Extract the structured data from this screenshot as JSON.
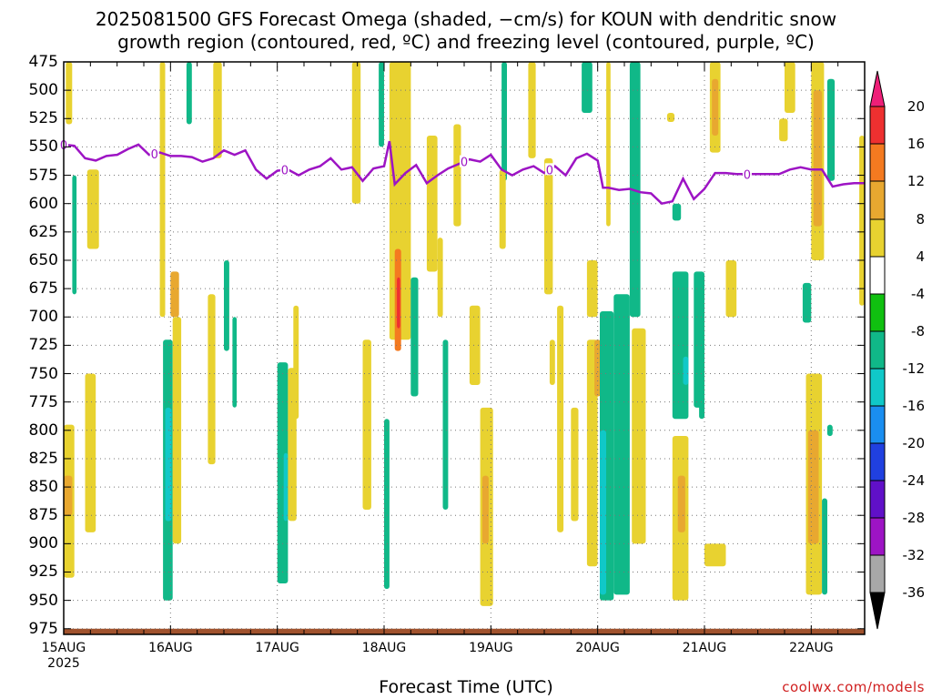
{
  "title": {
    "line1": "2025081500 GFS Forecast Omega (shaded, −cm/s) for KOUN with dendritic snow",
    "line2": "growth region (contoured, red, ºC) and freezing level (contoured, purple, ºC)"
  },
  "credit": "coolwx.com/models",
  "colors": {
    "freezing_line": "#9d14c4",
    "ground": "#a0522d",
    "grid": "#777777"
  },
  "chart_data": {
    "type": "heatmap",
    "xlabel": "Forecast Time (UTC)",
    "ylabel": "",
    "x_ticks": [
      "15AUG",
      "16AUG",
      "17AUG",
      "18AUG",
      "19AUG",
      "20AUG",
      "21AUG",
      "22AUG"
    ],
    "x_tick_year": "2025",
    "x_range_days": [
      0,
      7.5
    ],
    "y_ticks": [
      "475",
      "500",
      "525",
      "550",
      "575",
      "600",
      "625",
      "650",
      "675",
      "700",
      "725",
      "750",
      "775",
      "800",
      "825",
      "850",
      "875",
      "900",
      "925",
      "950",
      "975"
    ],
    "y_range": [
      475,
      980
    ],
    "grid": true,
    "colorbar": {
      "labels": [
        "20",
        "16",
        "12",
        "8",
        "4",
        "-4",
        "-8",
        "-12",
        "-16",
        "-20",
        "-24",
        "-28",
        "-32",
        "-36"
      ],
      "colors": [
        "#ee1f78",
        "#ee3030",
        "#f47a20",
        "#e8a830",
        "#e8d230",
        "#ffffff",
        "#10c010",
        "#10b888",
        "#10c8c8",
        "#1a8ef0",
        "#2040e0",
        "#6010c8",
        "#9d14c4",
        "#a8a8a8",
        "#000000"
      ]
    },
    "freezing_level": {
      "label": "0",
      "label_days": [
        0.0,
        0.85,
        2.07,
        3.75,
        4.55,
        6.4
      ],
      "days": [
        0,
        0.1,
        0.2,
        0.3,
        0.4,
        0.5,
        0.6,
        0.7,
        0.8,
        0.9,
        1.0,
        1.1,
        1.2,
        1.3,
        1.4,
        1.5,
        1.6,
        1.7,
        1.8,
        1.9,
        2.0,
        2.1,
        2.2,
        2.3,
        2.4,
        2.5,
        2.6,
        2.7,
        2.8,
        2.9,
        3.0,
        3.05,
        3.1,
        3.2,
        3.3,
        3.4,
        3.5,
        3.6,
        3.7,
        3.8,
        3.9,
        4.0,
        4.1,
        4.2,
        4.3,
        4.4,
        4.5,
        4.6,
        4.7,
        4.8,
        4.9,
        5.0,
        5.05,
        5.1,
        5.2,
        5.3,
        5.4,
        5.5,
        5.6,
        5.7,
        5.8,
        5.9,
        6.0,
        6.1,
        6.2,
        6.3,
        6.4,
        6.5,
        6.6,
        6.7,
        6.8,
        6.9,
        7.0,
        7.1,
        7.2,
        7.3,
        7.4,
        7.5
      ],
      "pressure": [
        548,
        549,
        560,
        562,
        558,
        557,
        552,
        548,
        557,
        555,
        558,
        558,
        559,
        563,
        560,
        553,
        557,
        553,
        570,
        578,
        571,
        570,
        575,
        570,
        567,
        560,
        570,
        568,
        580,
        569,
        567,
        545,
        583,
        573,
        566,
        582,
        575,
        569,
        565,
        561,
        563,
        557,
        570,
        575,
        570,
        567,
        573,
        567,
        575,
        560,
        556,
        562,
        586,
        586,
        588,
        587,
        590,
        591,
        600,
        598,
        578,
        596,
        587,
        573,
        573,
        574,
        574,
        574,
        574,
        574,
        570,
        568,
        570,
        570,
        585,
        583,
        582,
        582
      ]
    },
    "ground_level": 975,
    "omega_cells": [
      {
        "day0": 0.02,
        "day1": 0.08,
        "p0": 475,
        "p1": 530,
        "value": 4
      },
      {
        "day0": 0.22,
        "day1": 0.33,
        "p0": 570,
        "p1": 640,
        "value": 4
      },
      {
        "day0": 0.08,
        "day1": 0.12,
        "p0": 575,
        "p1": 680,
        "value": -8
      },
      {
        "day0": 0.0,
        "day1": 0.1,
        "p0": 795,
        "p1": 930,
        "value": 6
      },
      {
        "day0": 0.0,
        "day1": 0.08,
        "p0": 840,
        "p1": 875,
        "value": 9
      },
      {
        "day0": 0.2,
        "day1": 0.3,
        "p0": 750,
        "p1": 890,
        "value": 5
      },
      {
        "day0": 0.9,
        "day1": 0.95,
        "p0": 475,
        "p1": 700,
        "value": 4
      },
      {
        "day0": 1.0,
        "day1": 1.08,
        "p0": 660,
        "p1": 700,
        "value": 8
      },
      {
        "day0": 0.93,
        "day1": 1.02,
        "p0": 720,
        "p1": 950,
        "value": -8
      },
      {
        "day0": 0.95,
        "day1": 1.01,
        "p0": 780,
        "p1": 880,
        "value": -13
      },
      {
        "day0": 1.02,
        "day1": 1.1,
        "p0": 700,
        "p1": 900,
        "value": 5
      },
      {
        "day0": 1.15,
        "day1": 1.2,
        "p0": 475,
        "p1": 530,
        "value": -8
      },
      {
        "day0": 1.4,
        "day1": 1.48,
        "p0": 475,
        "p1": 560,
        "value": 4
      },
      {
        "day0": 1.35,
        "day1": 1.42,
        "p0": 680,
        "p1": 830,
        "value": 4
      },
      {
        "day0": 1.5,
        "day1": 1.55,
        "p0": 650,
        "p1": 730,
        "value": -8
      },
      {
        "day0": 2.0,
        "day1": 2.1,
        "p0": 740,
        "p1": 935,
        "value": -8
      },
      {
        "day0": 2.06,
        "day1": 2.1,
        "p0": 820,
        "p1": 880,
        "value": -13
      },
      {
        "day0": 2.1,
        "day1": 2.18,
        "p0": 745,
        "p1": 880,
        "value": 5
      },
      {
        "day0": 2.15,
        "day1": 2.2,
        "p0": 690,
        "p1": 790,
        "value": 4
      },
      {
        "day0": 2.7,
        "day1": 2.78,
        "p0": 475,
        "p1": 600,
        "value": 4
      },
      {
        "day0": 2.8,
        "day1": 2.88,
        "p0": 720,
        "p1": 870,
        "value": 5
      },
      {
        "day0": 3.0,
        "day1": 3.05,
        "p0": 790,
        "p1": 940,
        "value": -8
      },
      {
        "day0": 3.05,
        "day1": 3.25,
        "p0": 475,
        "p1": 720,
        "value": 5
      },
      {
        "day0": 3.1,
        "day1": 3.16,
        "p0": 640,
        "p1": 730,
        "value": 14
      },
      {
        "day0": 3.12,
        "day1": 3.15,
        "p0": 665,
        "p1": 710,
        "value": 17
      },
      {
        "day0": 2.95,
        "day1": 3.0,
        "p0": 475,
        "p1": 550,
        "value": -8
      },
      {
        "day0": 3.25,
        "day1": 3.32,
        "p0": 665,
        "p1": 770,
        "value": -8
      },
      {
        "day0": 3.4,
        "day1": 3.5,
        "p0": 540,
        "p1": 660,
        "value": 4
      },
      {
        "day0": 3.55,
        "day1": 3.6,
        "p0": 720,
        "p1": 870,
        "value": -8
      },
      {
        "day0": 3.8,
        "day1": 3.9,
        "p0": 690,
        "p1": 760,
        "value": 5
      },
      {
        "day0": 3.9,
        "day1": 4.02,
        "p0": 780,
        "p1": 955,
        "value": 6
      },
      {
        "day0": 3.92,
        "day1": 3.98,
        "p0": 840,
        "p1": 900,
        "value": 10
      },
      {
        "day0": 4.1,
        "day1": 4.15,
        "p0": 475,
        "p1": 580,
        "value": -8
      },
      {
        "day0": 4.08,
        "day1": 4.14,
        "p0": 570,
        "p1": 640,
        "value": 4
      },
      {
        "day0": 4.5,
        "day1": 4.58,
        "p0": 560,
        "p1": 680,
        "value": 4
      },
      {
        "day0": 4.55,
        "day1": 4.6,
        "p0": 720,
        "p1": 760,
        "value": 4
      },
      {
        "day0": 4.9,
        "day1": 5.0,
        "p0": 720,
        "p1": 920,
        "value": 6
      },
      {
        "day0": 4.97,
        "day1": 5.03,
        "p0": 720,
        "p1": 770,
        "value": 9
      },
      {
        "day0": 5.02,
        "day1": 5.15,
        "p0": 695,
        "p1": 950,
        "value": -8
      },
      {
        "day0": 5.02,
        "day1": 5.08,
        "p0": 800,
        "p1": 945,
        "value": -13
      },
      {
        "day0": 5.15,
        "day1": 5.3,
        "p0": 680,
        "p1": 945,
        "value": -8
      },
      {
        "day0": 5.32,
        "day1": 5.45,
        "p0": 710,
        "p1": 900,
        "value": 4
      },
      {
        "day0": 5.3,
        "day1": 5.4,
        "p0": 475,
        "p1": 700,
        "value": -8
      },
      {
        "day0": 5.08,
        "day1": 5.12,
        "p0": 475,
        "p1": 620,
        "value": 4
      },
      {
        "day0": 4.35,
        "day1": 4.42,
        "p0": 475,
        "p1": 560,
        "value": 4
      },
      {
        "day0": 4.85,
        "day1": 4.95,
        "p0": 475,
        "p1": 520,
        "value": -8
      },
      {
        "day0": 4.9,
        "day1": 5.0,
        "p0": 650,
        "p1": 700,
        "value": 4
      },
      {
        "day0": 5.7,
        "day1": 5.85,
        "p0": 660,
        "p1": 790,
        "value": -8
      },
      {
        "day0": 5.8,
        "day1": 5.85,
        "p0": 735,
        "p1": 760,
        "value": -13
      },
      {
        "day0": 5.9,
        "day1": 6.0,
        "p0": 660,
        "p1": 780,
        "value": -8
      },
      {
        "day0": 5.7,
        "day1": 5.85,
        "p0": 805,
        "p1": 950,
        "value": 5
      },
      {
        "day0": 5.75,
        "day1": 5.82,
        "p0": 840,
        "p1": 890,
        "value": 11
      },
      {
        "day0": 6.05,
        "day1": 6.15,
        "p0": 475,
        "p1": 555,
        "value": 4
      },
      {
        "day0": 6.07,
        "day1": 6.13,
        "p0": 490,
        "p1": 540,
        "value": 8
      },
      {
        "day0": 6.2,
        "day1": 6.3,
        "p0": 650,
        "p1": 700,
        "value": 4
      },
      {
        "day0": 7.0,
        "day1": 7.12,
        "p0": 475,
        "p1": 650,
        "value": 5
      },
      {
        "day0": 7.02,
        "day1": 7.1,
        "p0": 500,
        "p1": 620,
        "value": 8
      },
      {
        "day0": 7.15,
        "day1": 7.22,
        "p0": 490,
        "p1": 580,
        "value": -8
      },
      {
        "day0": 7.45,
        "day1": 7.5,
        "p0": 540,
        "p1": 690,
        "value": 4
      },
      {
        "day0": 6.92,
        "day1": 7.0,
        "p0": 670,
        "p1": 705,
        "value": -8
      },
      {
        "day0": 6.95,
        "day1": 7.1,
        "p0": 750,
        "p1": 945,
        "value": 5
      },
      {
        "day0": 6.97,
        "day1": 7.07,
        "p0": 800,
        "p1": 900,
        "value": 11
      },
      {
        "day0": 7.1,
        "day1": 7.15,
        "p0": 860,
        "p1": 945,
        "value": -8
      },
      {
        "day0": 7.15,
        "day1": 7.2,
        "p0": 795,
        "p1": 805,
        "value": -8
      },
      {
        "day0": 6.75,
        "day1": 6.85,
        "p0": 475,
        "p1": 520,
        "value": 4
      },
      {
        "day0": 4.62,
        "day1": 4.68,
        "p0": 690,
        "p1": 890,
        "value": 4
      },
      {
        "day0": 4.75,
        "day1": 4.82,
        "p0": 780,
        "p1": 880,
        "value": 4
      },
      {
        "day0": 3.65,
        "day1": 3.72,
        "p0": 530,
        "p1": 620,
        "value": 4
      },
      {
        "day0": 3.5,
        "day1": 3.55,
        "p0": 630,
        "p1": 700,
        "value": 4
      },
      {
        "day0": 1.58,
        "day1": 1.62,
        "p0": 700,
        "p1": 780,
        "value": -8
      },
      {
        "day0": 5.95,
        "day1": 6.0,
        "p0": 765,
        "p1": 790,
        "value": -8
      },
      {
        "day0": 6.0,
        "day1": 6.2,
        "p0": 900,
        "p1": 920,
        "value": 4
      },
      {
        "day0": 6.7,
        "day1": 6.78,
        "p0": 525,
        "p1": 545,
        "value": 4
      },
      {
        "day0": 5.7,
        "day1": 5.78,
        "p0": 600,
        "p1": 615,
        "value": -8
      },
      {
        "day0": 5.65,
        "day1": 5.72,
        "p0": 520,
        "p1": 528,
        "value": 4
      }
    ]
  }
}
